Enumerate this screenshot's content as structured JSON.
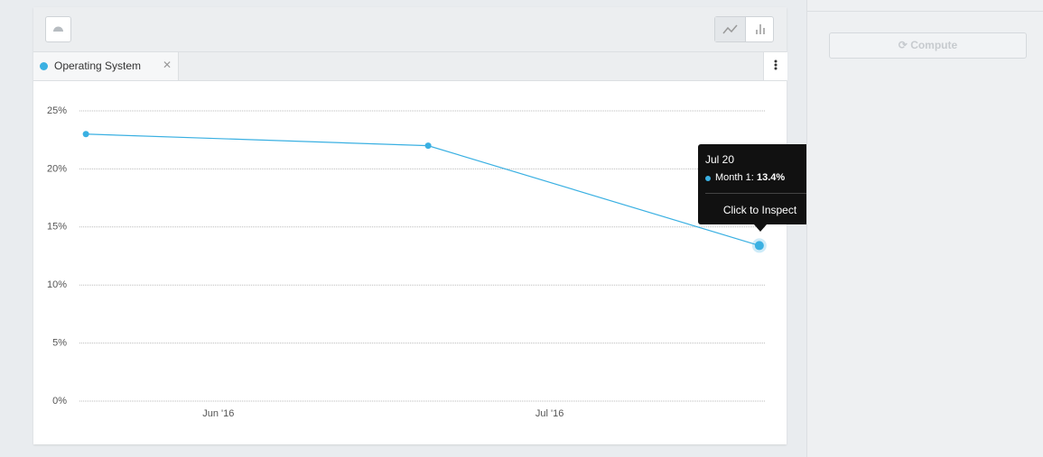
{
  "chart_data": {
    "type": "line",
    "x": [
      "2016-05-20",
      "2016-06-20",
      "2016-07-20"
    ],
    "series": [
      {
        "name": "Month 1",
        "color": "#3ab0e2",
        "values": [
          23,
          22,
          13.4
        ]
      }
    ],
    "xlim": [
      "2016-05-19T10:00",
      "2016-07-20T14:00"
    ],
    "xticks": [
      {
        "value": "2016-06-01",
        "label": "Jun '16"
      },
      {
        "value": "2016-07-01",
        "label": "Jul '16"
      }
    ],
    "ylim": [
      0,
      25
    ],
    "yticks": [
      {
        "value": 0,
        "label": "0%"
      },
      {
        "value": 5,
        "label": "5%"
      },
      {
        "value": 10,
        "label": "10%"
      },
      {
        "value": 15,
        "label": "15%"
      },
      {
        "value": 20,
        "label": "20%"
      },
      {
        "value": 25,
        "label": "25%"
      }
    ],
    "grid": true
  },
  "tab": {
    "label": "Operating System"
  },
  "tooltip": {
    "title": "Jul 20",
    "series": "Month 1:",
    "value": "13.4%",
    "action": "Click to Inspect"
  },
  "sidebar": {
    "button": "Compute"
  }
}
